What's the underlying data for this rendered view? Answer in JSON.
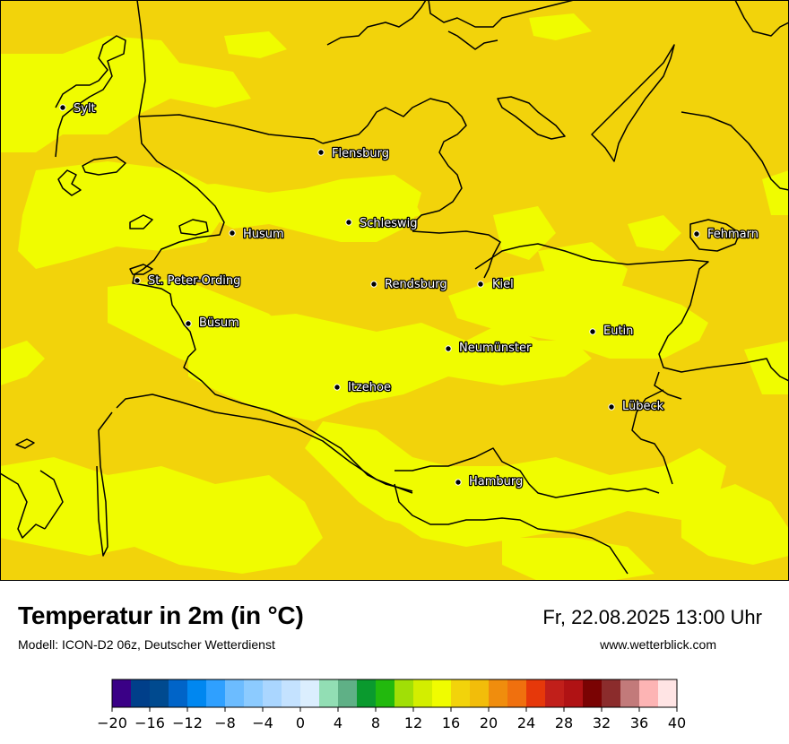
{
  "map": {
    "cities": [
      {
        "name": "Sylt"
      },
      {
        "name": "Flensburg"
      },
      {
        "name": "Schleswig"
      },
      {
        "name": "Husum"
      },
      {
        "name": "St. Peter-Ording"
      },
      {
        "name": "Rendsburg"
      },
      {
        "name": "Kiel"
      },
      {
        "name": "Fehmarn"
      },
      {
        "name": "Büsum"
      },
      {
        "name": "Eutin"
      },
      {
        "name": "Neumünster"
      },
      {
        "name": "Itzehoe"
      },
      {
        "name": "Lübeck"
      },
      {
        "name": "Hamburg"
      }
    ],
    "colors": {
      "base": "#f2d30b",
      "warm_patch": "#f0fc00"
    }
  },
  "footer": {
    "title": "Temperatur in 2m (in °C)",
    "subtitle": "Modell: ICON-D2 06z, Deutscher Wetterdienst",
    "datetime": "Fr, 22.08.2025 13:00 Uhr",
    "website": "www.wetterblick.com"
  },
  "legend": {
    "ticks": [
      "−20",
      "−16",
      "−12",
      "−8",
      "−4",
      "0",
      "4",
      "8",
      "12",
      "16",
      "20",
      "24",
      "28",
      "32",
      "36",
      "40"
    ],
    "colors": [
      "#3a0086",
      "#003f8a",
      "#004a8f",
      "#0064c8",
      "#0087f0",
      "#2fa0ff",
      "#6cbcff",
      "#8ccbff",
      "#aad6ff",
      "#c4e2ff",
      "#dbeefe",
      "#92deb4",
      "#5fb086",
      "#0a9a2e",
      "#22b90d",
      "#a1df06",
      "#d3ee00",
      "#f0fc00",
      "#f2d30b",
      "#f2bd0a",
      "#f08d0d",
      "#f0700e",
      "#e6380a",
      "#c11f1a",
      "#b01214",
      "#7a0303",
      "#8b2c2c",
      "#c27a7a",
      "#fdb4b4",
      "#ffe4e4"
    ]
  }
}
